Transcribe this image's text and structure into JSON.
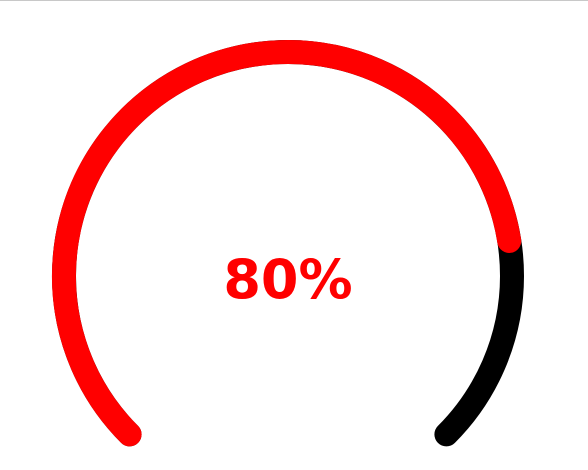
{
  "gauge": {
    "value_label": "80%",
    "value_fraction": 0.8,
    "colors": {
      "progress": "#ff0000",
      "track": "#000000",
      "label": "#ff0000",
      "background": "#ffffff"
    }
  }
}
